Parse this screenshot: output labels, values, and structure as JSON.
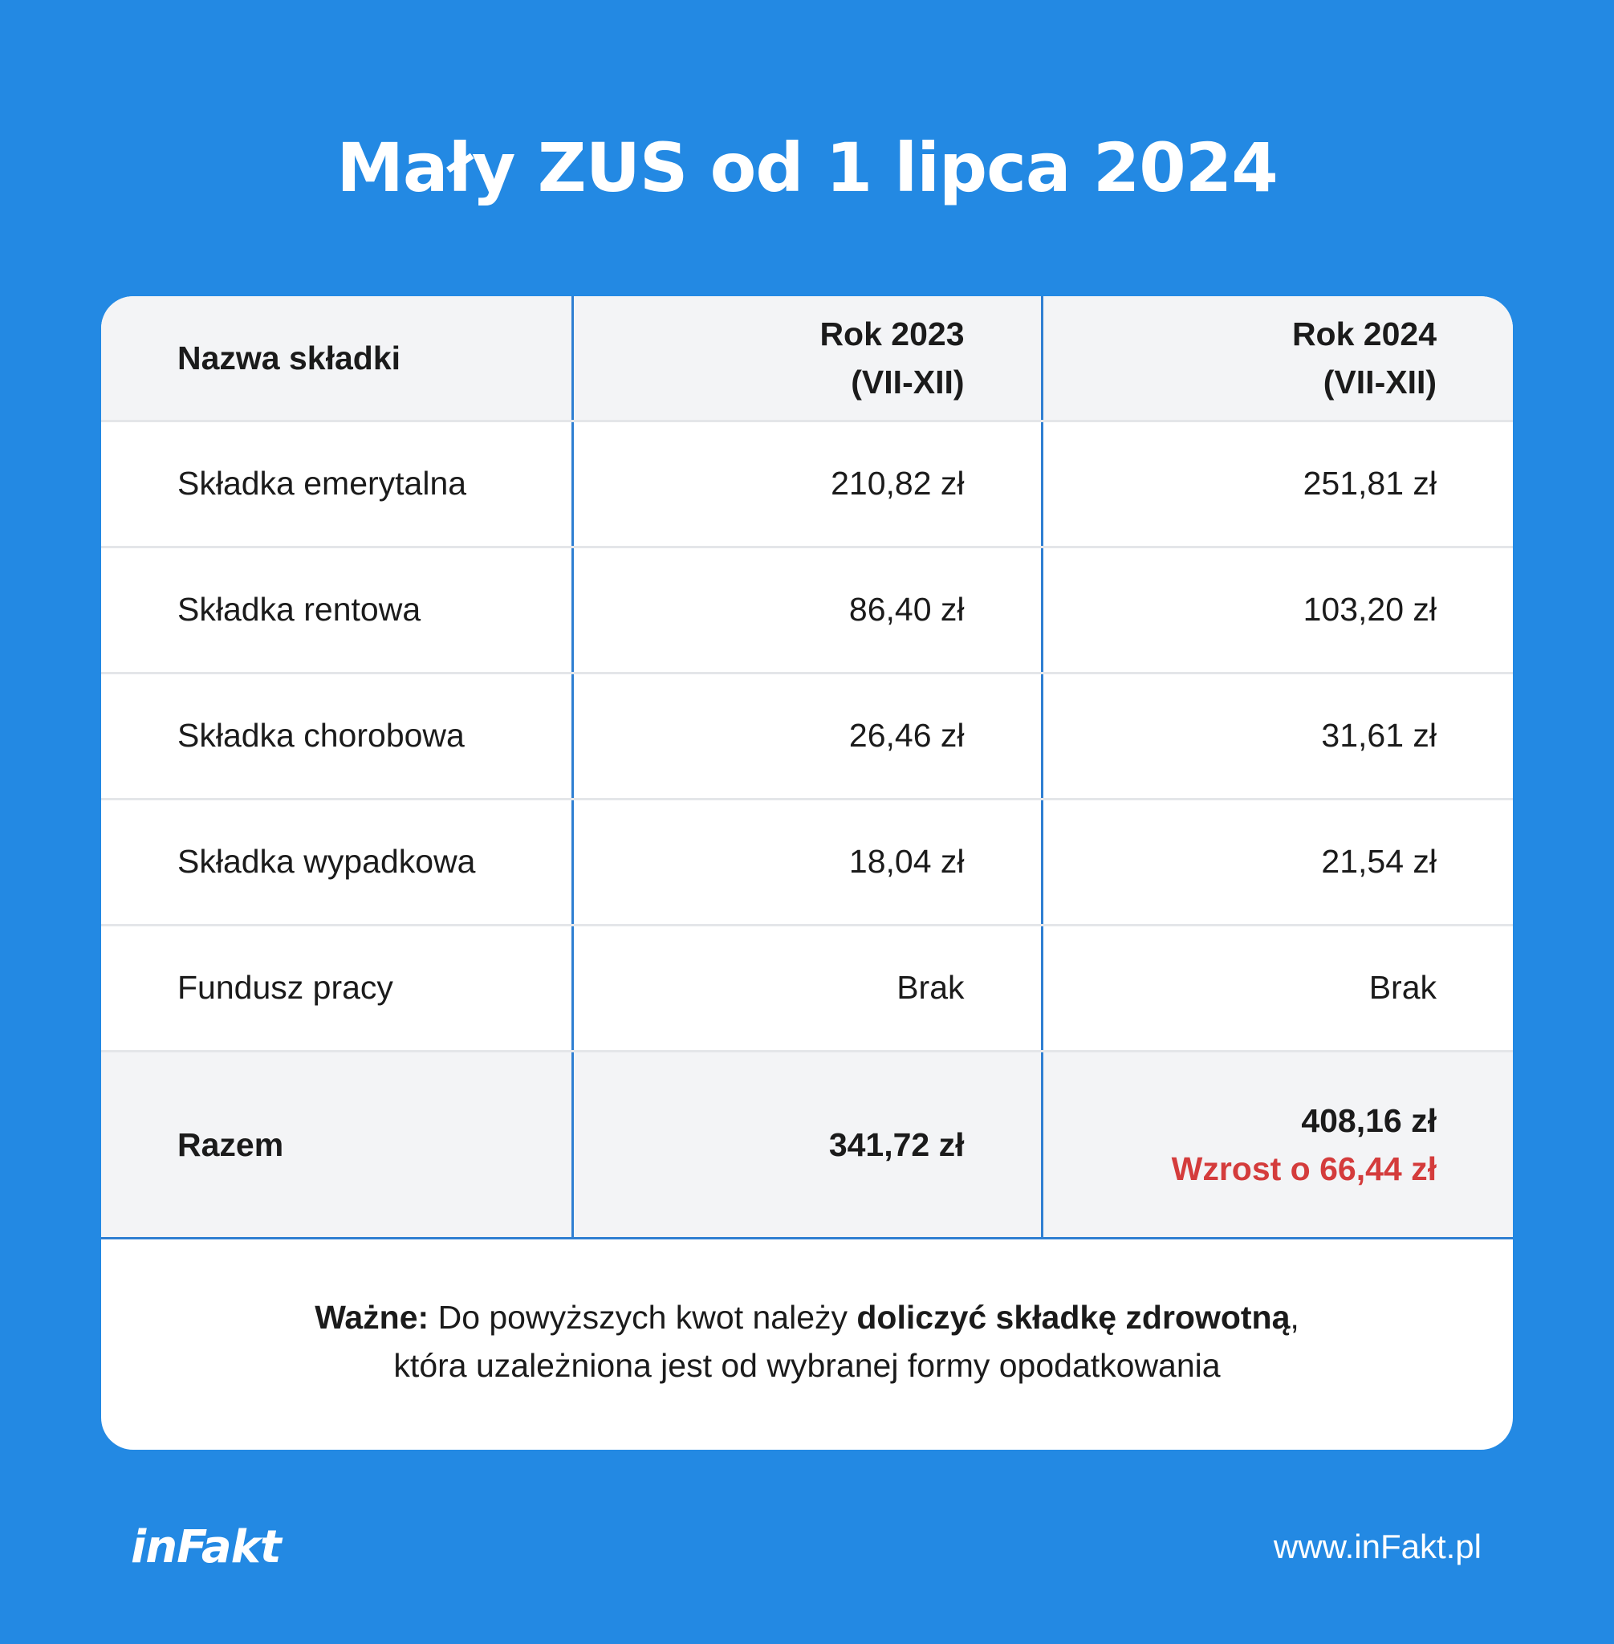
{
  "title": "Mały ZUS od 1 lipca 2024",
  "table": {
    "headers": {
      "name": "Nazwa składki",
      "y2023_line1": "Rok 2023",
      "y2023_line2": "(VII-XII)",
      "y2024_line1": "Rok 2024",
      "y2024_line2": "(VII-XII)"
    },
    "rows": [
      {
        "name": "Składka emerytalna",
        "y2023": "210,82 zł",
        "y2024": "251,81 zł"
      },
      {
        "name": "Składka rentowa",
        "y2023": "86,40 zł",
        "y2024": "103,20 zł"
      },
      {
        "name": "Składka chorobowa",
        "y2023": "26,46 zł",
        "y2024": "31,61 zł"
      },
      {
        "name": "Składka wypadkowa",
        "y2023": "18,04 zł",
        "y2024": "21,54 zł"
      },
      {
        "name": "Fundusz pracy",
        "y2023": "Brak",
        "y2024": "Brak"
      }
    ],
    "total": {
      "name": "Razem",
      "y2023": "341,72 zł",
      "y2024": "408,16 zł",
      "increase": "Wzrost o 66,44 zł"
    }
  },
  "note": {
    "label": "Ważne:",
    "text1": " Do powyższych kwot należy ",
    "bold": "doliczyć składkę zdrowotną",
    "text2": ",",
    "line2": "która uzależniona jest od wybranej formy opodatkowania"
  },
  "footer": {
    "logo": "inFakt",
    "url": "www.inFakt.pl"
  },
  "colors": {
    "background": "#2389e3",
    "divider": "#2f7fd2",
    "increase": "#d43c3c"
  }
}
